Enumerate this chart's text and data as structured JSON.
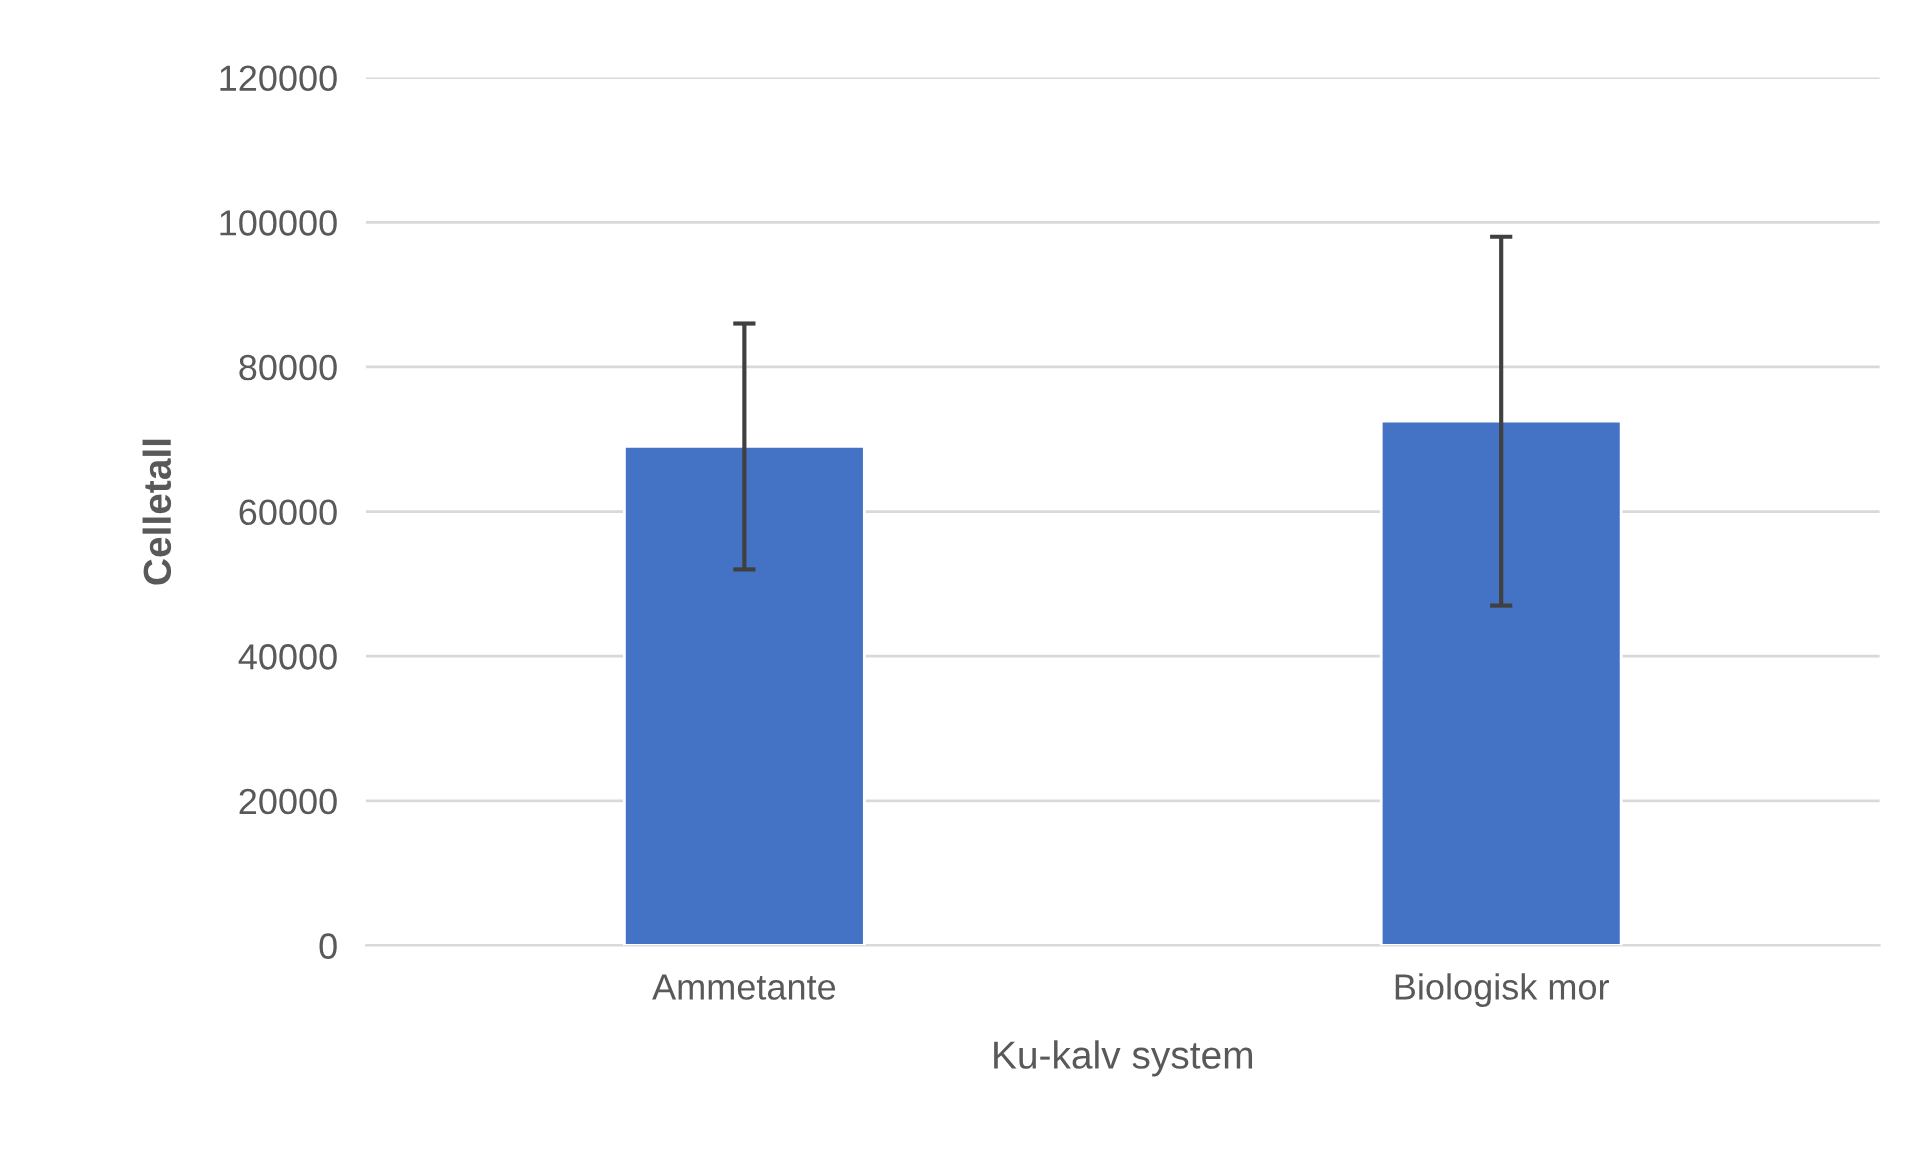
{
  "chart_data": {
    "type": "bar",
    "xlabel": "Ku-kalv system",
    "ylabel": "Celletall",
    "categories": [
      "Ammetante",
      "Biologisk mor"
    ],
    "values": [
      69000,
      72500
    ],
    "errors": [
      [
        52000,
        86000
      ],
      [
        47000,
        98000
      ]
    ],
    "color": "#4472c4",
    "ylim": [
      0,
      120000
    ],
    "yticks": [
      0,
      20000,
      40000,
      60000,
      80000,
      100000,
      120000
    ],
    "grid": "y",
    "legend": false
  }
}
